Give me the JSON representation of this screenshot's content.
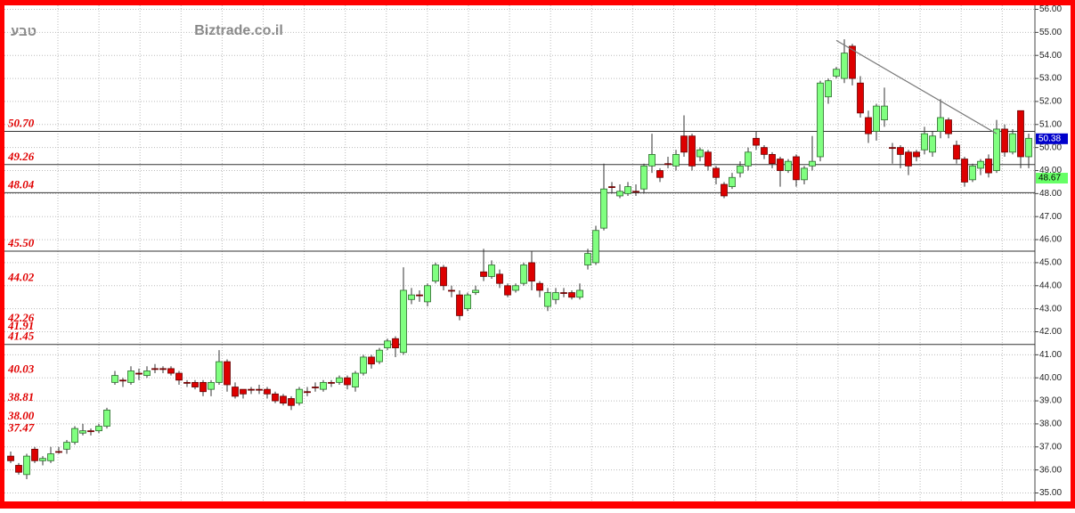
{
  "chart_data": {
    "type": "candlestick",
    "title": "Biztrade.co.il",
    "symbol": "טבע",
    "open": [
      36.6,
      36.2,
      35.8,
      36.9,
      36.4,
      36.4,
      36.8,
      36.9,
      37.2,
      37.6,
      37.7,
      37.7,
      37.9,
      39.8,
      39.9,
      39.8,
      40.2,
      40.1,
      40.4,
      40.4,
      40.4,
      40.2,
      39.8,
      39.8,
      39.8,
      39.5,
      39.8,
      40.7,
      39.6,
      39.5,
      39.5,
      39.5,
      39.5,
      39.3,
      39.2,
      39.1,
      38.9,
      39.4,
      39.6,
      39.5,
      39.8,
      39.8,
      40.0,
      39.6,
      40.2,
      40.9,
      40.7,
      41.3,
      41.7,
      41.1,
      43.4,
      43.6,
      43.3,
      44.2,
      44.8,
      43.8,
      43.6,
      43.0,
      43.7,
      44.6,
      44.4,
      44.5,
      44.0,
      43.8,
      44.1,
      45.0,
      44.1,
      43.1,
      43.4,
      43.7,
      43.7,
      43.5,
      44.9,
      45.0,
      46.5,
      48.3,
      47.9,
      48.0,
      48.1,
      48.2,
      49.2,
      49.0,
      49.3,
      49.2,
      50.5,
      50.5,
      49.6,
      49.8,
      49.1,
      48.4,
      48.3,
      48.9,
      49.2,
      50.4,
      50.0,
      49.7,
      49.5,
      49.0,
      49.6,
      48.6,
      49.2,
      49.6,
      52.2,
      53.1,
      53.0,
      54.4,
      52.8,
      51.3,
      50.7,
      51.2,
      50.0,
      50.0,
      49.8,
      49.8,
      49.9,
      49.8,
      50.7,
      51.2,
      50.1,
      49.5,
      48.6,
      49.1,
      49.5,
      49.0,
      50.8,
      49.8,
      51.6,
      49.6
    ],
    "high": [
      36.8,
      36.3,
      36.7,
      37.0,
      36.6,
      37.0,
      37.0,
      37.3,
      37.9,
      38.0,
      37.8,
      38.0,
      38.7,
      40.3,
      40.0,
      40.5,
      40.4,
      40.5,
      40.6,
      40.5,
      40.5,
      40.3,
      39.9,
      39.9,
      39.9,
      39.9,
      41.2,
      40.8,
      39.8,
      39.5,
      39.6,
      39.7,
      39.6,
      39.4,
      39.3,
      39.2,
      39.6,
      39.6,
      39.8,
      39.9,
      39.9,
      40.1,
      40.1,
      40.3,
      41.0,
      41.0,
      41.3,
      41.7,
      41.8,
      44.8,
      43.9,
      43.8,
      44.1,
      45.0,
      44.9,
      44.0,
      43.8,
      43.7,
      44.0,
      45.6,
      45.1,
      44.7,
      44.1,
      44.1,
      45.0,
      45.5,
      44.2,
      43.9,
      43.9,
      43.9,
      43.8,
      44.1,
      45.6,
      46.6,
      49.3,
      48.5,
      48.4,
      48.5,
      48.4,
      49.3,
      50.6,
      49.1,
      49.6,
      49.9,
      51.4,
      50.6,
      50.0,
      49.9,
      49.2,
      48.5,
      48.9,
      49.4,
      50.0,
      50.7,
      50.1,
      49.8,
      49.6,
      49.5,
      49.7,
      49.2,
      50.5,
      52.9,
      53.0,
      53.5,
      54.7,
      54.5,
      53.1,
      51.6,
      51.9,
      52.6,
      50.2,
      50.1,
      49.9,
      49.9,
      50.9,
      50.7,
      52.1,
      51.3,
      50.3,
      49.6,
      49.3,
      49.5,
      49.7,
      51.2,
      51.0,
      50.8,
      51.6,
      50.6
    ],
    "low": [
      36.3,
      35.8,
      35.6,
      36.3,
      36.2,
      36.3,
      36.7,
      36.7,
      37.1,
      37.5,
      37.5,
      37.6,
      37.8,
      39.7,
      39.6,
      39.7,
      39.9,
      40.0,
      40.2,
      40.2,
      40.1,
      39.7,
      39.6,
      39.5,
      39.2,
      39.2,
      39.7,
      39.4,
      39.1,
      39.1,
      39.3,
      39.3,
      39.1,
      38.9,
      38.8,
      38.6,
      38.8,
      39.2,
      39.4,
      39.4,
      39.6,
      39.7,
      39.5,
      39.4,
      40.1,
      40.4,
      40.6,
      41.2,
      40.9,
      41.0,
      43.2,
      43.3,
      43.1,
      44.1,
      43.8,
      43.5,
      42.5,
      42.9,
      43.6,
      44.2,
      44.3,
      43.9,
      43.5,
      43.7,
      44.0,
      43.8,
      43.5,
      42.9,
      43.2,
      43.5,
      43.4,
      43.4,
      44.7,
      44.9,
      46.4,
      48.0,
      47.8,
      47.9,
      47.9,
      48.0,
      48.9,
      48.5,
      49.1,
      49.0,
      49.6,
      49.0,
      49.4,
      49.0,
      48.4,
      47.8,
      48.2,
      48.7,
      49.0,
      49.9,
      49.5,
      49.1,
      48.3,
      48.9,
      48.3,
      48.4,
      49.0,
      49.4,
      51.9,
      53.0,
      52.8,
      52.7,
      51.3,
      50.2,
      50.3,
      50.9,
      49.3,
      49.1,
      48.8,
      49.4,
      49.7,
      49.6,
      50.4,
      50.4,
      49.3,
      48.3,
      48.5,
      48.8,
      48.7,
      48.9,
      49.6,
      49.7,
      49.1,
      49.1
    ],
    "close": [
      36.4,
      35.9,
      36.6,
      36.4,
      36.5,
      36.7,
      36.8,
      37.2,
      37.8,
      37.7,
      37.7,
      37.9,
      38.6,
      40.1,
      39.9,
      40.3,
      40.2,
      40.3,
      40.4,
      40.4,
      40.2,
      39.9,
      39.8,
      39.6,
      39.4,
      39.8,
      40.7,
      39.7,
      39.2,
      39.3,
      39.5,
      39.5,
      39.3,
      39.0,
      38.9,
      38.8,
      39.5,
      39.4,
      39.6,
      39.8,
      39.8,
      40.0,
      39.7,
      40.2,
      40.9,
      40.6,
      41.2,
      41.6,
      41.3,
      43.8,
      43.6,
      43.6,
      44.0,
      44.9,
      44.0,
      43.8,
      42.7,
      43.6,
      43.8,
      44.4,
      44.9,
      44.1,
      43.6,
      44.0,
      44.9,
      44.2,
      43.8,
      43.7,
      43.7,
      43.7,
      43.5,
      43.8,
      45.4,
      46.4,
      48.2,
      48.3,
      48.1,
      48.3,
      48.1,
      49.2,
      49.7,
      48.7,
      49.3,
      49.7,
      49.8,
      49.2,
      49.9,
      49.2,
      48.7,
      47.9,
      48.7,
      49.2,
      49.8,
      50.1,
      49.7,
      49.3,
      49.0,
      49.4,
      48.6,
      49.1,
      49.4,
      52.8,
      52.9,
      53.4,
      54.1,
      53.0,
      51.5,
      50.6,
      51.8,
      51.8,
      50.0,
      49.7,
      49.2,
      49.6,
      50.6,
      50.5,
      51.3,
      50.6,
      49.5,
      48.5,
      49.2,
      49.4,
      48.9,
      50.8,
      49.8,
      50.6,
      49.6,
      50.4
    ],
    "up_color": "#80ff80",
    "down_color": "#dd0000",
    "ylim": [
      35,
      56
    ],
    "yticks": [
      {
        "value": 35,
        "label": "35.00"
      },
      {
        "value": 36,
        "label": "36.00"
      },
      {
        "value": 37,
        "label": "37.00"
      },
      {
        "value": 38,
        "label": "38.00"
      },
      {
        "value": 39,
        "label": "39.00"
      },
      {
        "value": 40,
        "label": "40.00"
      },
      {
        "value": 41,
        "label": "41.00"
      },
      {
        "value": 42,
        "label": "42.00"
      },
      {
        "value": 43,
        "label": "43.00"
      },
      {
        "value": 44,
        "label": "44.00"
      },
      {
        "value": 45,
        "label": "45.00"
      },
      {
        "value": 46,
        "label": "46.00"
      },
      {
        "value": 47,
        "label": "47.00"
      },
      {
        "value": 48,
        "label": "48.00"
      },
      {
        "value": 49,
        "label": "49.00"
      },
      {
        "value": 50,
        "label": "50.00"
      },
      {
        "value": 51,
        "label": "51.00"
      },
      {
        "value": 52,
        "label": "52.00"
      },
      {
        "value": 53,
        "label": "53.00"
      },
      {
        "value": 54,
        "label": "54.00"
      },
      {
        "value": 55,
        "label": "55.00"
      },
      {
        "value": 56,
        "label": "56.00"
      }
    ],
    "grid": true,
    "levels": [
      {
        "value": 50.7,
        "label": "50.70",
        "line": true
      },
      {
        "value": 49.26,
        "line": true
      },
      {
        "value": 48.04,
        "line": true
      },
      {
        "value": 45.5,
        "label": "45.50",
        "line": true
      },
      {
        "value": 44.02,
        "line": false
      },
      {
        "value": 42.26,
        "line": false
      },
      {
        "value": 41.91,
        "line": false
      },
      {
        "value": 41.45,
        "line": true
      },
      {
        "value": 40.03,
        "line": false
      },
      {
        "value": 38.81,
        "line": false
      },
      {
        "value": 38.0,
        "label": "38.00",
        "line": false
      },
      {
        "value": 37.47,
        "line": false
      }
    ],
    "price_tags": [
      {
        "value": 50.38,
        "background": "#0000cc",
        "color": "#ffffff"
      },
      {
        "value": 48.67,
        "background": "#66ff66",
        "color": "#000000"
      }
    ],
    "trendline": {
      "x": [
        103,
        123
      ],
      "values": [
        54.65,
        50.6
      ]
    }
  }
}
